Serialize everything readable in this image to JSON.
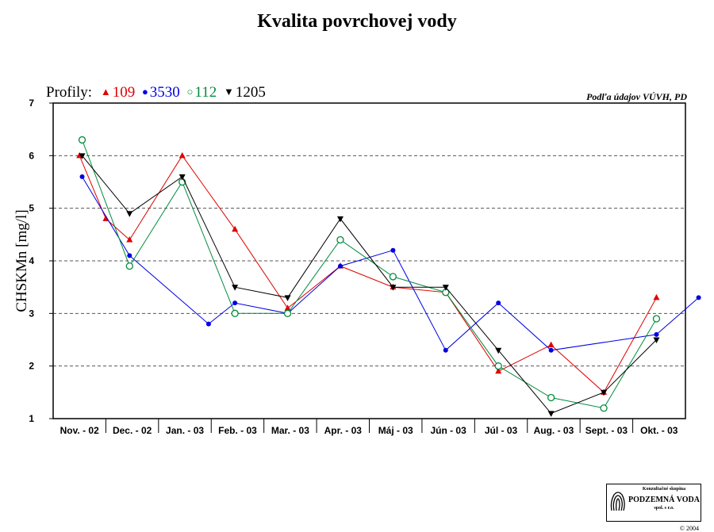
{
  "title": "Kvalita povrchovej vody",
  "source_note": "Podľa údajov VÚVH, PD",
  "legend": {
    "label": "Profily:",
    "items": [
      {
        "name": "109",
        "color": "#e00000",
        "marker": "triangle-up"
      },
      {
        "name": "3530",
        "color": "#0000e0",
        "marker": "circle-filled"
      },
      {
        "name": "112",
        "color": "#008c3c",
        "marker": "circle-open"
      },
      {
        "name": "1205",
        "color": "#000000",
        "marker": "triangle-down"
      }
    ]
  },
  "logo": {
    "top_text": "Konzultačné skupina",
    "name": "PODZEMNÁ VODA",
    "sub_text": "spol. s r.o.",
    "copyright": "© 2004"
  },
  "chart_data": {
    "type": "line",
    "ylabel": "CHSKMn [mg/l]",
    "xlabel": "",
    "ylim": [
      1,
      7
    ],
    "yticks": [
      1,
      2,
      3,
      4,
      5,
      6,
      7
    ],
    "grid": "horizontal-dashed",
    "categories": [
      "Nov. - 02",
      "Dec. - 02",
      "Jan. - 03",
      "Feb. - 03",
      "Mar. - 03",
      "Apr. - 03",
      "Máj - 03",
      "Jún - 03",
      "Júl - 03",
      "Aug. - 03",
      "Sept. - 03",
      "Okt. - 03"
    ],
    "series": [
      {
        "name": "109",
        "color": "#e00000",
        "marker": "triangle-up",
        "points": [
          [
            1.0,
            6.0
          ],
          [
            1.5,
            4.8
          ],
          [
            1.95,
            4.4
          ],
          [
            2.95,
            6.0
          ],
          [
            3.95,
            4.6
          ],
          [
            4.95,
            3.1
          ],
          [
            5.95,
            3.9
          ],
          [
            6.95,
            3.5
          ],
          [
            7.95,
            3.4
          ],
          [
            8.95,
            1.9
          ],
          [
            9.95,
            2.4
          ],
          [
            10.95,
            1.5
          ],
          [
            11.95,
            3.3
          ]
        ]
      },
      {
        "name": "3530",
        "color": "#0000e0",
        "marker": "circle-filled",
        "points": [
          [
            1.05,
            5.6
          ],
          [
            1.95,
            4.1
          ],
          [
            3.45,
            2.8
          ],
          [
            3.95,
            3.2
          ],
          [
            4.95,
            3.0
          ],
          [
            5.95,
            3.9
          ],
          [
            6.95,
            4.2
          ],
          [
            7.95,
            2.3
          ],
          [
            8.95,
            3.2
          ],
          [
            9.95,
            2.3
          ],
          [
            11.95,
            2.6
          ],
          [
            12.75,
            3.3
          ]
        ]
      },
      {
        "name": "112",
        "color": "#008c3c",
        "marker": "circle-open",
        "points": [
          [
            1.05,
            6.3
          ],
          [
            1.95,
            3.9
          ],
          [
            2.95,
            5.5
          ],
          [
            3.95,
            3.0
          ],
          [
            4.95,
            3.0
          ],
          [
            5.95,
            4.4
          ],
          [
            6.95,
            3.7
          ],
          [
            7.95,
            3.4
          ],
          [
            8.95,
            2.0
          ],
          [
            9.95,
            1.4
          ],
          [
            10.95,
            1.2
          ],
          [
            11.95,
            2.9
          ]
        ]
      },
      {
        "name": "1205",
        "color": "#000000",
        "marker": "triangle-down",
        "points": [
          [
            1.05,
            6.0
          ],
          [
            1.95,
            4.9
          ],
          [
            2.95,
            5.6
          ],
          [
            3.95,
            3.5
          ],
          [
            4.95,
            3.3
          ],
          [
            5.95,
            4.8
          ],
          [
            6.95,
            3.5
          ],
          [
            7.95,
            3.5
          ],
          [
            8.95,
            2.3
          ],
          [
            9.95,
            1.1
          ],
          [
            10.95,
            1.5
          ],
          [
            11.95,
            2.5
          ]
        ]
      }
    ]
  }
}
